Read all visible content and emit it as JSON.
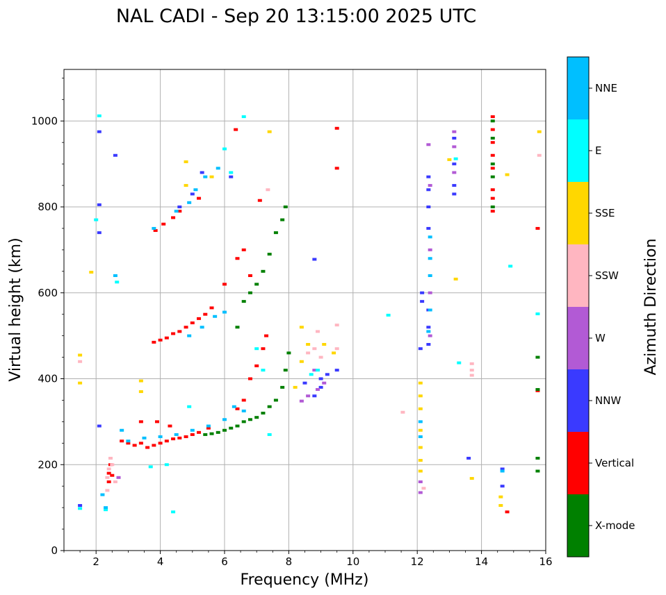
{
  "chart_data": {
    "type": "scatter",
    "title": "NAL CADI - Sep 20 13:15:00 2025 UTC",
    "xlabel": "Frequency (MHz)",
    "ylabel": "Virtual height (km)",
    "xlim": [
      1,
      16
    ],
    "ylim": [
      0,
      1120
    ],
    "xticks": [
      "2",
      "4",
      "6",
      "8",
      "10",
      "12",
      "14",
      "16"
    ],
    "yticks": [
      "0",
      "200",
      "400",
      "600",
      "800",
      "1000"
    ],
    "grid": true,
    "colorbar": {
      "label": "Azimuth Direction",
      "position": "right",
      "categories": [
        {
          "name": "X-mode",
          "color": "#008000"
        },
        {
          "name": "Vertical",
          "color": "#ff0000"
        },
        {
          "name": "NNW",
          "color": "#3a3aff"
        },
        {
          "name": "W",
          "color": "#b25ad5"
        },
        {
          "name": "SSW",
          "color": "#ffb6c1"
        },
        {
          "name": "SSE",
          "color": "#ffd700"
        },
        {
          "name": "E",
          "color": "#00ffff"
        },
        {
          "name": "NNE",
          "color": "#00bfff"
        }
      ]
    },
    "series": [
      {
        "name": "Vertical",
        "color": "#ff0000",
        "points": [
          [
            2.4,
            160
          ],
          [
            2.4,
            180
          ],
          [
            2.45,
            200
          ],
          [
            2.5,
            175
          ],
          [
            2.8,
            255
          ],
          [
            3.0,
            250
          ],
          [
            3.2,
            245
          ],
          [
            3.4,
            250
          ],
          [
            3.6,
            240
          ],
          [
            3.8,
            245
          ],
          [
            4.0,
            250
          ],
          [
            4.2,
            255
          ],
          [
            4.4,
            260
          ],
          [
            4.6,
            262
          ],
          [
            4.8,
            265
          ],
          [
            5.0,
            270
          ],
          [
            5.2,
            275
          ],
          [
            5.5,
            285
          ],
          [
            3.4,
            300
          ],
          [
            3.9,
            300
          ],
          [
            4.3,
            290
          ],
          [
            3.8,
            485
          ],
          [
            4.0,
            490
          ],
          [
            4.2,
            495
          ],
          [
            4.4,
            505
          ],
          [
            4.6,
            510
          ],
          [
            4.8,
            520
          ],
          [
            5.0,
            530
          ],
          [
            5.2,
            540
          ],
          [
            5.4,
            550
          ],
          [
            5.6,
            565
          ],
          [
            6.0,
            620
          ],
          [
            6.4,
            680
          ],
          [
            6.6,
            700
          ],
          [
            6.8,
            640
          ],
          [
            3.85,
            745
          ],
          [
            4.1,
            760
          ],
          [
            4.4,
            775
          ],
          [
            4.6,
            790
          ],
          [
            5.2,
            820
          ],
          [
            6.4,
            330
          ],
          [
            6.6,
            350
          ],
          [
            6.8,
            400
          ],
          [
            7.0,
            430
          ],
          [
            7.2,
            470
          ],
          [
            7.3,
            500
          ],
          [
            6.35,
            980
          ],
          [
            9.5,
            983
          ],
          [
            9.5,
            890
          ],
          [
            7.1,
            815
          ],
          [
            14.35,
            1010
          ],
          [
            14.35,
            980
          ],
          [
            14.35,
            950
          ],
          [
            14.35,
            920
          ],
          [
            14.35,
            890
          ],
          [
            14.35,
            840
          ],
          [
            14.35,
            820
          ],
          [
            14.35,
            790
          ],
          [
            14.8,
            90
          ],
          [
            15.75,
            750
          ],
          [
            15.75,
            372
          ]
        ]
      },
      {
        "name": "X-mode",
        "color": "#008000",
        "points": [
          [
            5.4,
            270
          ],
          [
            5.6,
            272
          ],
          [
            5.8,
            275
          ],
          [
            6.0,
            280
          ],
          [
            6.2,
            285
          ],
          [
            6.4,
            290
          ],
          [
            6.6,
            300
          ],
          [
            6.8,
            305
          ],
          [
            7.0,
            310
          ],
          [
            7.2,
            320
          ],
          [
            7.4,
            335
          ],
          [
            7.6,
            350
          ],
          [
            7.8,
            380
          ],
          [
            7.9,
            420
          ],
          [
            8.0,
            460
          ],
          [
            6.4,
            520
          ],
          [
            6.6,
            580
          ],
          [
            6.8,
            600
          ],
          [
            7.0,
            620
          ],
          [
            7.2,
            650
          ],
          [
            7.4,
            690
          ],
          [
            7.6,
            740
          ],
          [
            7.8,
            770
          ],
          [
            7.9,
            800
          ],
          [
            14.35,
            1000
          ],
          [
            14.35,
            960
          ],
          [
            14.35,
            900
          ],
          [
            14.35,
            870
          ],
          [
            14.35,
            800
          ],
          [
            15.75,
            450
          ],
          [
            15.75,
            375
          ],
          [
            15.75,
            215
          ],
          [
            15.75,
            185
          ]
        ]
      },
      {
        "name": "NNW",
        "color": "#3a3aff",
        "points": [
          [
            1.5,
            105
          ],
          [
            2.1,
            290
          ],
          [
            2.1,
            740
          ],
          [
            2.1,
            805
          ],
          [
            2.1,
            975
          ],
          [
            2.6,
            920
          ],
          [
            4.6,
            800
          ],
          [
            5.0,
            830
          ],
          [
            5.3,
            880
          ],
          [
            6.2,
            870
          ],
          [
            8.8,
            678
          ],
          [
            8.5,
            390
          ],
          [
            8.8,
            360
          ],
          [
            9.0,
            380
          ],
          [
            9.0,
            400
          ],
          [
            9.2,
            410
          ],
          [
            9.5,
            420
          ],
          [
            12.15,
            600
          ],
          [
            12.15,
            580
          ],
          [
            12.35,
            560
          ],
          [
            12.35,
            520
          ],
          [
            12.35,
            480
          ],
          [
            12.35,
            800
          ],
          [
            12.35,
            840
          ],
          [
            12.35,
            870
          ],
          [
            12.35,
            750
          ],
          [
            12.1,
            470
          ],
          [
            13.15,
            960
          ],
          [
            13.15,
            900
          ],
          [
            13.15,
            850
          ],
          [
            13.15,
            830
          ],
          [
            13.6,
            215
          ],
          [
            14.65,
            190
          ],
          [
            14.65,
            150
          ]
        ]
      },
      {
        "name": "W",
        "color": "#b25ad5",
        "points": [
          [
            8.4,
            348
          ],
          [
            8.6,
            360
          ],
          [
            8.9,
            375
          ],
          [
            9.1,
            390
          ],
          [
            8.8,
            420
          ],
          [
            12.4,
            850
          ],
          [
            12.4,
            700
          ],
          [
            12.4,
            600
          ],
          [
            12.4,
            500
          ],
          [
            12.35,
            945
          ],
          [
            13.15,
            975
          ],
          [
            13.15,
            940
          ],
          [
            13.15,
            880
          ],
          [
            12.1,
            160
          ],
          [
            12.1,
            135
          ],
          [
            2.7,
            170
          ]
        ]
      },
      {
        "name": "SSW",
        "color": "#ffb6c1",
        "points": [
          [
            2.35,
            140
          ],
          [
            2.35,
            170
          ],
          [
            2.4,
            190
          ],
          [
            2.5,
            200
          ],
          [
            2.45,
            215
          ],
          [
            2.6,
            160
          ],
          [
            1.5,
            440
          ],
          [
            8.6,
            460
          ],
          [
            8.8,
            470
          ],
          [
            8.9,
            510
          ],
          [
            9.0,
            450
          ],
          [
            9.5,
            525
          ],
          [
            9.5,
            470
          ],
          [
            13.7,
            435
          ],
          [
            13.7,
            420
          ],
          [
            13.7,
            408
          ],
          [
            15.8,
            920
          ],
          [
            12.2,
            145
          ],
          [
            7.35,
            840
          ],
          [
            11.55,
            322
          ]
        ]
      },
      {
        "name": "SSE",
        "color": "#ffd700",
        "points": [
          [
            1.5,
            455
          ],
          [
            1.5,
            390
          ],
          [
            1.85,
            648
          ],
          [
            4.8,
            905
          ],
          [
            4.8,
            850
          ],
          [
            5.6,
            870
          ],
          [
            7.4,
            975
          ],
          [
            8.4,
            520
          ],
          [
            8.6,
            480
          ],
          [
            9.1,
            480
          ],
          [
            9.4,
            460
          ],
          [
            8.2,
            380
          ],
          [
            8.4,
            440
          ],
          [
            12.1,
            390
          ],
          [
            12.1,
            360
          ],
          [
            12.1,
            330
          ],
          [
            12.1,
            280
          ],
          [
            12.1,
            240
          ],
          [
            12.1,
            210
          ],
          [
            12.1,
            185
          ],
          [
            13.0,
            910
          ],
          [
            13.2,
            632
          ],
          [
            13.7,
            168
          ],
          [
            14.6,
            125
          ],
          [
            14.6,
            105
          ],
          [
            14.8,
            875
          ],
          [
            15.8,
            975
          ],
          [
            3.4,
            395
          ],
          [
            3.4,
            370
          ]
        ]
      },
      {
        "name": "E",
        "color": "#00ffff",
        "points": [
          [
            1.5,
            98
          ],
          [
            2.3,
            95
          ],
          [
            4.4,
            90
          ],
          [
            2.0,
            770
          ],
          [
            2.1,
            1012
          ],
          [
            2.65,
            625
          ],
          [
            3.7,
            195
          ],
          [
            4.2,
            200
          ],
          [
            4.9,
            335
          ],
          [
            6.6,
            1010
          ],
          [
            6.0,
            935
          ],
          [
            6.2,
            880
          ],
          [
            7.0,
            470
          ],
          [
            7.2,
            420
          ],
          [
            7.4,
            270
          ],
          [
            8.7,
            410
          ],
          [
            8.9,
            420
          ],
          [
            11.1,
            548
          ],
          [
            13.3,
            437
          ],
          [
            13.2,
            912
          ],
          [
            14.9,
            662
          ],
          [
            15.75,
            551
          ]
        ]
      },
      {
        "name": "NNE",
        "color": "#00bfff",
        "points": [
          [
            2.2,
            130
          ],
          [
            2.3,
            100
          ],
          [
            2.6,
            640
          ],
          [
            2.8,
            280
          ],
          [
            3.0,
            255
          ],
          [
            3.5,
            262
          ],
          [
            4.0,
            265
          ],
          [
            4.5,
            270
          ],
          [
            5.0,
            280
          ],
          [
            5.5,
            290
          ],
          [
            6.0,
            305
          ],
          [
            6.6,
            325
          ],
          [
            6.3,
            335
          ],
          [
            3.8,
            750
          ],
          [
            4.5,
            790
          ],
          [
            4.9,
            810
          ],
          [
            5.1,
            840
          ],
          [
            5.4,
            870
          ],
          [
            5.8,
            890
          ],
          [
            4.9,
            500
          ],
          [
            5.3,
            520
          ],
          [
            5.7,
            545
          ],
          [
            6.0,
            555
          ],
          [
            12.4,
            730
          ],
          [
            12.4,
            680
          ],
          [
            12.4,
            640
          ],
          [
            12.4,
            560
          ],
          [
            12.35,
            510
          ],
          [
            12.1,
            300
          ],
          [
            12.1,
            265
          ],
          [
            14.65,
            185
          ]
        ]
      }
    ]
  }
}
